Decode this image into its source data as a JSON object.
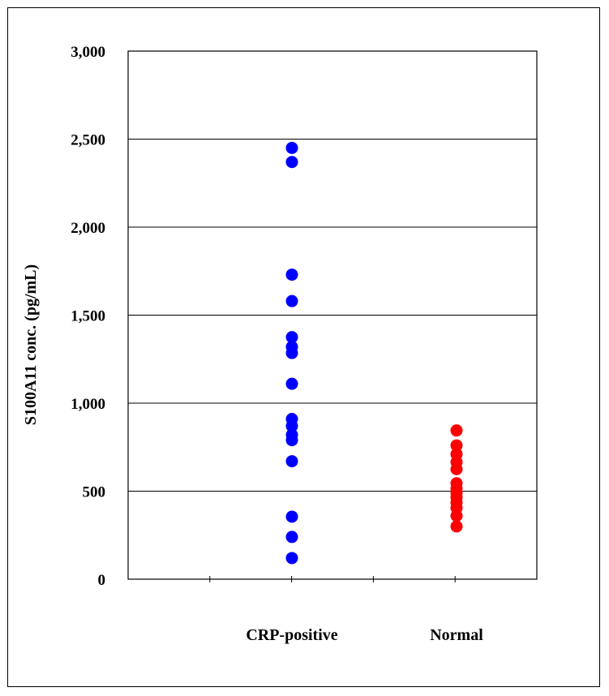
{
  "chart_data": {
    "type": "scatter",
    "ylabel": "S100A11 conc. (pg/mL)",
    "xlabel": "",
    "ylim": [
      0,
      3000
    ],
    "yticks": [
      0,
      500,
      1000,
      1500,
      2000,
      2500,
      3000
    ],
    "ytick_labels": [
      "0",
      "500",
      "1,000",
      "1,500",
      "2,000",
      "2,500",
      "3,000"
    ],
    "grid": true,
    "categories": [
      "CRP-positive",
      "Normal"
    ],
    "series": [
      {
        "category": "CRP-positive",
        "color": "#0000ff",
        "values": [
          2450,
          2370,
          1730,
          1580,
          1375,
          1320,
          1285,
          1110,
          910,
          870,
          820,
          790,
          670,
          355,
          240,
          120
        ]
      },
      {
        "category": "Normal",
        "color": "#ff0000",
        "values": [
          845,
          760,
          710,
          665,
          625,
          545,
          515,
          490,
          465,
          435,
          405,
          360,
          300
        ]
      }
    ]
  }
}
